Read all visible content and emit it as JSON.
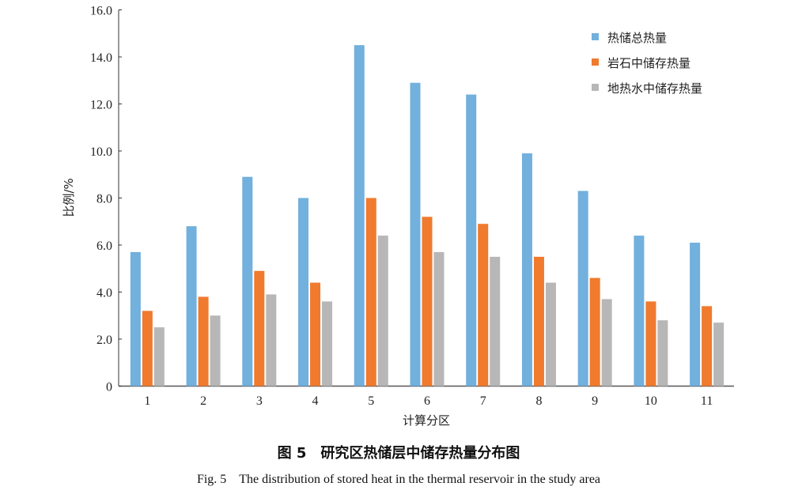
{
  "chart_data": {
    "type": "bar",
    "categories": [
      "1",
      "2",
      "3",
      "4",
      "5",
      "6",
      "7",
      "8",
      "9",
      "10",
      "11"
    ],
    "series": [
      {
        "name": "热储总热量",
        "color": "#72B0DD",
        "values": [
          5.7,
          6.8,
          8.9,
          8.0,
          14.5,
          12.9,
          12.4,
          9.9,
          8.3,
          6.4,
          6.1
        ]
      },
      {
        "name": "岩石中储存热量",
        "color": "#F07A2E",
        "values": [
          3.2,
          3.8,
          4.9,
          4.4,
          8.0,
          7.2,
          6.9,
          5.5,
          4.6,
          3.6,
          3.4
        ]
      },
      {
        "name": "地热水中储存热量",
        "color": "#B7B7B7",
        "values": [
          2.5,
          3.0,
          3.9,
          3.6,
          6.4,
          5.7,
          5.5,
          4.4,
          3.7,
          2.8,
          2.7
        ]
      }
    ],
    "xlabel": "计算分区",
    "ylabel": "比例/%",
    "ylim": [
      0,
      16
    ],
    "yticks": [
      "0",
      "2.0",
      "4.0",
      "6.0",
      "8.0",
      "10.0",
      "12.0",
      "14.0",
      "16.0"
    ],
    "grid": false,
    "legend": "top-right"
  },
  "caption": {
    "cn": "图 5　研究区热储层中储存热量分布图",
    "en": "Fig. 5　The distribution of stored heat in the thermal reservoir in the study area"
  }
}
